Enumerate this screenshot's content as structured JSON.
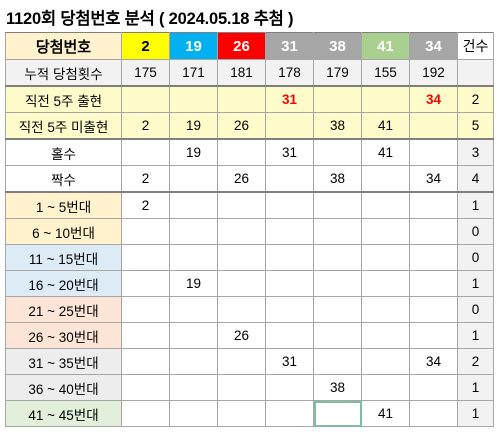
{
  "title": "1120회 당첨번호 분석 ( 2024.05.18 추첨 )",
  "header": {
    "label": "당첨번호",
    "numbers": [
      "2",
      "19",
      "26",
      "31",
      "38",
      "41",
      "34"
    ],
    "count_label": "건수"
  },
  "cumulative": {
    "label": "누적 당첨횟수",
    "values": [
      "175",
      "171",
      "181",
      "178",
      "179",
      "155",
      "192"
    ],
    "count": ""
  },
  "prev5_appear": {
    "label": "직전 5주 출현",
    "values": [
      "",
      "",
      "",
      "31",
      "",
      "",
      "34"
    ],
    "count": "2"
  },
  "prev5_missing": {
    "label": "직전 5주 미출현",
    "values": [
      "2",
      "19",
      "26",
      "",
      "38",
      "41",
      ""
    ],
    "count": "5"
  },
  "odd": {
    "label": "홀수",
    "values": [
      "",
      "19",
      "",
      "31",
      "",
      "41",
      ""
    ],
    "count": "3"
  },
  "even": {
    "label": "짝수",
    "values": [
      "2",
      "",
      "26",
      "",
      "38",
      "",
      "34"
    ],
    "count": "4"
  },
  "ranges": [
    {
      "label": "1 ~ 5번대",
      "values": [
        "2",
        "",
        "",
        "",
        "",
        "",
        ""
      ],
      "count": "1"
    },
    {
      "label": "6 ~ 10번대",
      "values": [
        "",
        "",
        "",
        "",
        "",
        "",
        ""
      ],
      "count": "0"
    },
    {
      "label": "11 ~ 15번대",
      "values": [
        "",
        "",
        "",
        "",
        "",
        "",
        ""
      ],
      "count": "0"
    },
    {
      "label": "16 ~ 20번대",
      "values": [
        "",
        "19",
        "",
        "",
        "",
        "",
        ""
      ],
      "count": "1"
    },
    {
      "label": "21 ~ 25번대",
      "values": [
        "",
        "",
        "",
        "",
        "",
        "",
        ""
      ],
      "count": "0"
    },
    {
      "label": "26 ~ 30번대",
      "values": [
        "",
        "",
        "26",
        "",
        "",
        "",
        ""
      ],
      "count": "1"
    },
    {
      "label": "31 ~ 35번대",
      "values": [
        "",
        "",
        "",
        "31",
        "",
        "",
        "34"
      ],
      "count": "2"
    },
    {
      "label": "36 ~ 40번대",
      "values": [
        "",
        "",
        "",
        "",
        "38",
        "",
        ""
      ],
      "count": "1"
    },
    {
      "label": "41 ~ 45번대",
      "values": [
        "",
        "",
        "",
        "",
        "",
        "41",
        ""
      ],
      "count": "1"
    }
  ]
}
